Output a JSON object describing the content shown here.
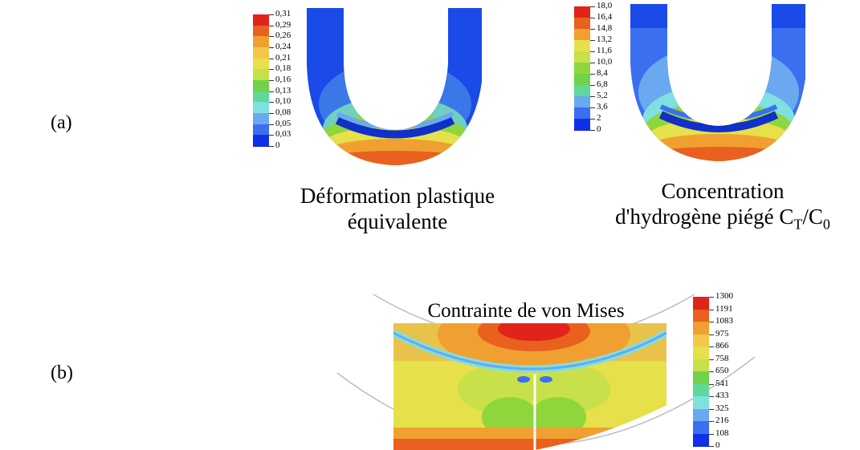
{
  "panel_a": {
    "label": "(a)",
    "left": {
      "caption_line1": "Déformation plastique",
      "caption_line2": "équivalente",
      "legend_ticks": [
        "0,31",
        "0,29",
        "0,26",
        "0,24",
        "0,21",
        "0,18",
        "0,16",
        "0,13",
        "0,10",
        "0,08",
        "0,05",
        "0,03",
        "0"
      ]
    },
    "right": {
      "caption_line1": "Concentration",
      "caption_line2_main": "d'hydrogène piégé C",
      "caption_sub_t": "T",
      "caption_slash": "/C",
      "caption_sub_0": "0",
      "legend_ticks": [
        "18,0",
        "16,4",
        "14,8",
        "13,2",
        "11,6",
        "10,0",
        "8,4",
        "6,8",
        "5,2",
        "3,6",
        "2",
        "0"
      ]
    }
  },
  "panel_b": {
    "label": "(b)",
    "title": "Contrainte de von Mises",
    "legend_ticks": [
      "1300",
      "1191",
      "1083",
      "975",
      "866",
      "758",
      "650",
      "541",
      "433",
      "325",
      "216",
      "108",
      "0"
    ]
  },
  "colors": {
    "scale": [
      "#e2231a",
      "#e9601f",
      "#f0a030",
      "#f2c84a",
      "#e6e04a",
      "#c8e04a",
      "#8fd63d",
      "#6fd24a",
      "#5fd89a",
      "#7fe0e0",
      "#6aa9f0",
      "#3b6ff0",
      "#1030e8"
    ]
  }
}
